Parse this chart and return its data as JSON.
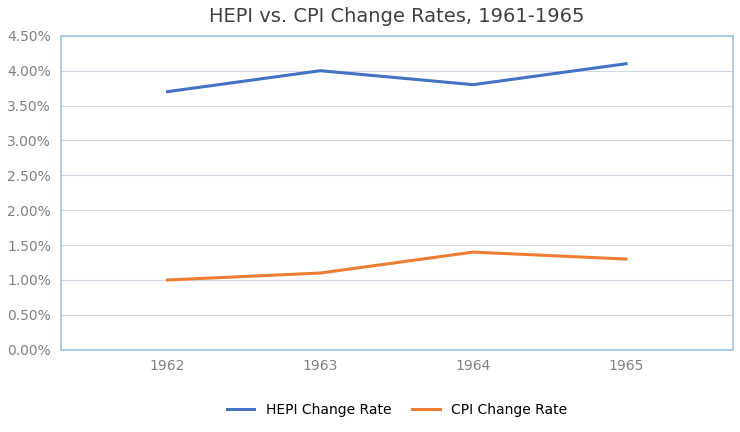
{
  "title": "HEPI vs. CPI Change Rates, 1961-1965",
  "years": [
    1962,
    1963,
    1964,
    1965
  ],
  "hepi": [
    0.037,
    0.04,
    0.038,
    0.041
  ],
  "cpi": [
    0.01,
    0.011,
    0.014,
    0.013
  ],
  "hepi_label": "HEPI Change Rate",
  "cpi_label": "CPI Change Rate",
  "hepi_color": "#4472C4",
  "cpi_color": "#ED7D31",
  "ylim": [
    0.0,
    0.045
  ],
  "yticks": [
    0.0,
    0.005,
    0.01,
    0.015,
    0.02,
    0.025,
    0.03,
    0.035,
    0.04,
    0.045
  ],
  "background_color": "#ffffff",
  "plot_bg_color": "#ffffff",
  "spine_color": "#9DC3E6",
  "title_fontsize": 14,
  "legend_fontsize": 10,
  "tick_fontsize": 10,
  "line_width": 2.2,
  "grid_color": "#d0d8e8",
  "grid_linewidth": 0.8,
  "tick_color": "#808080"
}
